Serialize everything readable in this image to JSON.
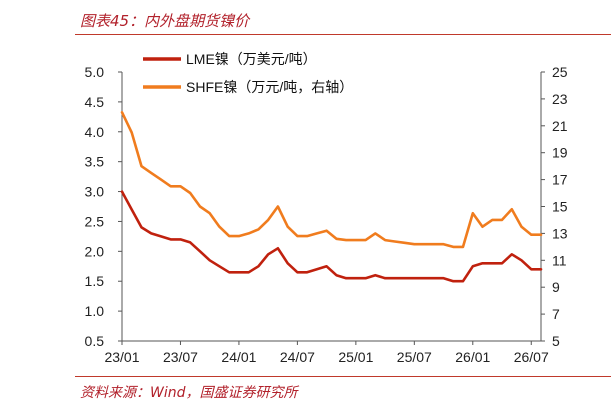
{
  "page": {
    "title": "图表45：内外盘期货镍价",
    "source": "资料来源：Wind，国盛证券研究所"
  },
  "chart_data": {
    "type": "line",
    "title": "",
    "xlabel": "",
    "ylabel": "",
    "x_ticks": [
      "23/01",
      "23/07",
      "24/01",
      "24/07",
      "25/01",
      "25/07",
      "26/01",
      "26/07"
    ],
    "x_range": [
      "23/01",
      "26/08"
    ],
    "ylim_left": [
      0.5,
      5.0
    ],
    "ylim_right": [
      5,
      25
    ],
    "yticks_left": [
      "5.0",
      "4.5",
      "4.0",
      "3.5",
      "3.0",
      "2.5",
      "2.0",
      "1.5",
      "1.0",
      "0.5"
    ],
    "yticks_right": [
      "25",
      "23",
      "21",
      "19",
      "17",
      "15",
      "13",
      "11",
      "9",
      "7",
      "5"
    ],
    "grid": false,
    "legend_placement": "top-left",
    "series": [
      {
        "name": "LME镍（万美元/吨）",
        "axis": "left",
        "color": "#c0210e",
        "x": [
          "23/01",
          "23/02",
          "23/03",
          "23/04",
          "23/05",
          "23/06",
          "23/07",
          "23/08",
          "23/09",
          "23/10",
          "23/11",
          "23/12",
          "24/01",
          "24/02",
          "24/03",
          "24/04",
          "24/05",
          "24/06",
          "24/07",
          "24/08",
          "24/09",
          "24/10",
          "24/11",
          "24/12",
          "25/01",
          "25/02",
          "25/03",
          "25/04",
          "25/05",
          "25/06",
          "25/07",
          "25/08",
          "25/09",
          "25/10",
          "25/11",
          "25/12",
          "26/01",
          "26/02",
          "26/03",
          "26/04",
          "26/05",
          "26/06",
          "26/07",
          "26/08"
        ],
        "values": [
          3.0,
          2.7,
          2.4,
          2.3,
          2.25,
          2.2,
          2.2,
          2.15,
          2.0,
          1.85,
          1.75,
          1.65,
          1.65,
          1.65,
          1.75,
          1.95,
          2.05,
          1.8,
          1.65,
          1.65,
          1.7,
          1.75,
          1.6,
          1.55,
          1.55,
          1.55,
          1.6,
          1.55,
          1.55,
          1.55,
          1.55,
          1.55,
          1.55,
          1.55,
          1.5,
          1.5,
          1.75,
          1.8,
          1.8,
          1.8,
          1.95,
          1.85,
          1.7,
          1.7
        ]
      },
      {
        "name": "SHFE镍（万元/吨，右轴）",
        "axis": "right",
        "color": "#f07c1e",
        "x": [
          "23/01",
          "23/02",
          "23/03",
          "23/04",
          "23/05",
          "23/06",
          "23/07",
          "23/08",
          "23/09",
          "23/10",
          "23/11",
          "23/12",
          "24/01",
          "24/02",
          "24/03",
          "24/04",
          "24/05",
          "24/06",
          "24/07",
          "24/08",
          "24/09",
          "24/10",
          "24/11",
          "24/12",
          "25/01",
          "25/02",
          "25/03",
          "25/04",
          "25/05",
          "25/06",
          "25/07",
          "25/08",
          "25/09",
          "25/10",
          "25/11",
          "25/12",
          "26/01",
          "26/02",
          "26/03",
          "26/04",
          "26/05",
          "26/06",
          "26/07",
          "26/08"
        ],
        "values": [
          22.0,
          20.5,
          18.0,
          17.5,
          17.0,
          16.5,
          16.5,
          16.0,
          15.0,
          14.5,
          13.5,
          12.8,
          12.8,
          13.0,
          13.3,
          14.0,
          15.0,
          13.5,
          12.8,
          12.8,
          13.0,
          13.2,
          12.6,
          12.5,
          12.5,
          12.5,
          13.0,
          12.5,
          12.4,
          12.3,
          12.2,
          12.2,
          12.2,
          12.2,
          12.0,
          12.0,
          14.5,
          13.5,
          14.0,
          14.0,
          14.8,
          13.5,
          12.9,
          12.9
        ]
      }
    ]
  }
}
